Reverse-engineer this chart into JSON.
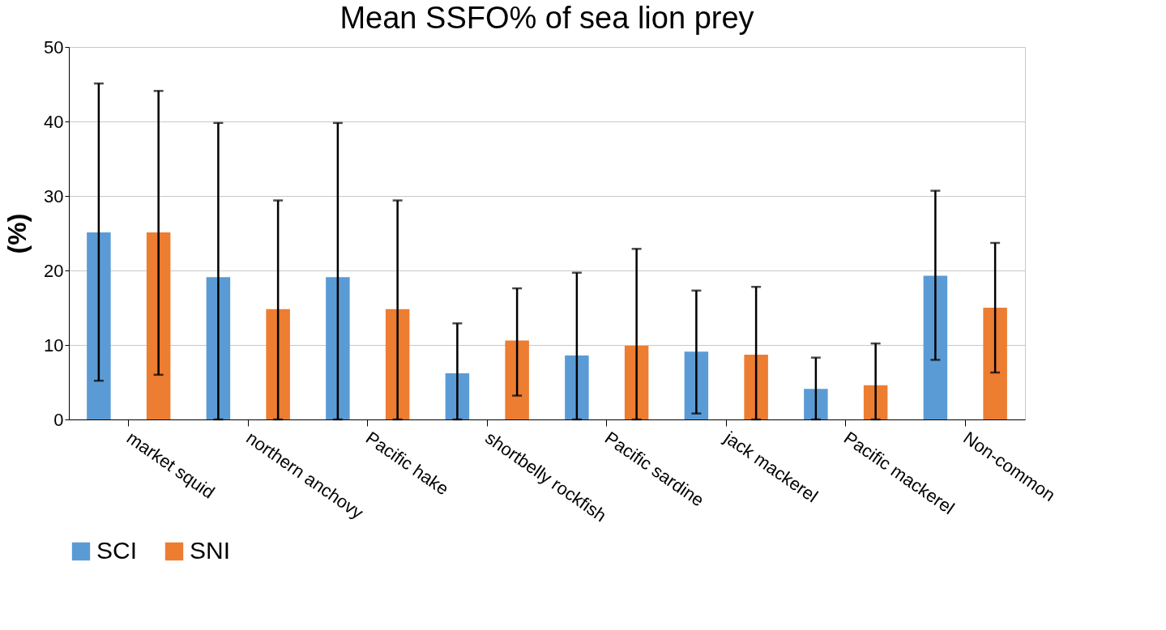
{
  "chart_data": {
    "type": "bar",
    "title": "Mean SSFO% of sea lion prey",
    "ylabel": "(%)",
    "categories": [
      "market squid",
      "northern anchovy",
      "Pacific hake",
      "shortbelly rockfish",
      "Pacific sardine",
      "jack mackerel",
      "Pacific mackerel",
      "Non-common"
    ],
    "series": [
      {
        "name": "SCI",
        "color": "#5b9bd5",
        "values": [
          25.1,
          19.1,
          19.1,
          6.2,
          8.6,
          9.1,
          4.1,
          19.3
        ],
        "errors": [
          [
            5.2,
            45.1
          ],
          [
            0,
            39.8
          ],
          [
            0,
            39.8
          ],
          [
            0,
            12.9
          ],
          [
            0,
            19.7
          ],
          [
            0.8,
            17.3
          ],
          [
            0,
            8.3
          ],
          [
            8.0,
            30.7
          ]
        ]
      },
      {
        "name": "SNI",
        "color": "#ed7d31",
        "values": [
          25.1,
          14.8,
          14.8,
          10.6,
          9.9,
          8.7,
          4.6,
          15.0
        ],
        "errors": [
          [
            6.0,
            44.1
          ],
          [
            0,
            29.4
          ],
          [
            0,
            29.4
          ],
          [
            3.2,
            17.6
          ],
          [
            0,
            22.9
          ],
          [
            0,
            17.8
          ],
          [
            0,
            10.2
          ],
          [
            6.3,
            23.7
          ]
        ]
      }
    ],
    "ylim": [
      0,
      50
    ],
    "yticks": [
      0,
      10,
      20,
      30,
      40,
      50
    ],
    "grid": "y",
    "legend": "bottom"
  }
}
